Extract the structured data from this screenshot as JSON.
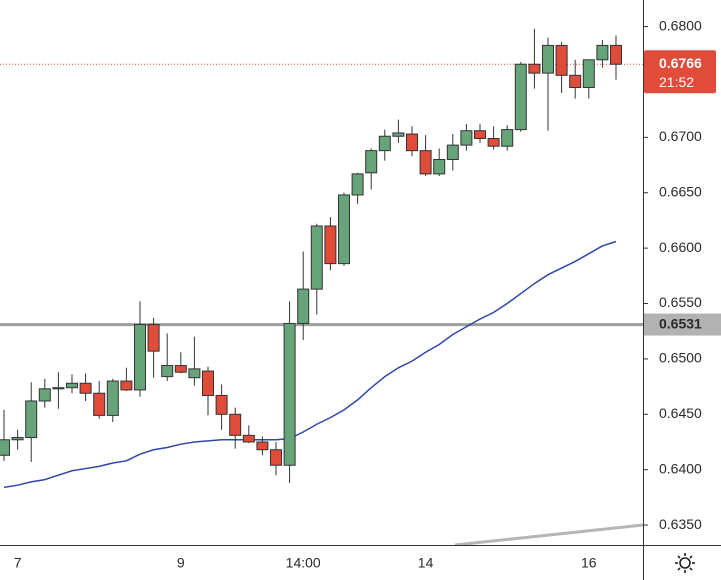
{
  "chart_data": {
    "type": "candlestick",
    "categories": [
      null,
      "7",
      null,
      null,
      null,
      null,
      null,
      null,
      null,
      null,
      null,
      null,
      null,
      "9",
      null,
      null,
      null,
      null,
      null,
      null,
      null,
      null,
      "14:00",
      null,
      null,
      null,
      null,
      null,
      null,
      null,
      null,
      "14",
      null,
      null,
      null,
      null,
      null,
      null,
      null,
      null,
      null,
      null,
      null,
      "16",
      null,
      null
    ],
    "candles": {
      "up_color": "#67a47a",
      "down_color": "#e04b3a",
      "open": [
        0.6413,
        0.6427,
        0.6429,
        0.6462,
        0.6473,
        0.6474,
        0.6478,
        0.6469,
        0.6449,
        0.648,
        0.6472,
        0.6531,
        0.6484,
        0.6494,
        0.6483,
        0.6489,
        0.6467,
        0.645,
        0.6431,
        0.6425,
        0.6418,
        0.6404,
        0.6532,
        0.6563,
        0.662,
        0.6586,
        0.6648,
        0.6668,
        0.6688,
        0.6701,
        0.6703,
        0.6688,
        0.6667,
        0.668,
        0.6693,
        0.6706,
        0.6699,
        0.6692,
        0.6707,
        0.6766,
        0.6758,
        0.6783,
        0.6756,
        0.6745,
        0.677,
        0.6783
      ],
      "high": [
        0.6454,
        0.6436,
        0.6479,
        0.6482,
        0.6488,
        0.6486,
        0.6487,
        0.648,
        0.6482,
        0.6492,
        0.6552,
        0.6537,
        0.6523,
        0.6506,
        0.652,
        0.6493,
        0.6477,
        0.6456,
        0.644,
        0.643,
        0.6425,
        0.6552,
        0.6597,
        0.6622,
        0.6628,
        0.665,
        0.6668,
        0.669,
        0.6707,
        0.6716,
        0.671,
        0.6702,
        0.669,
        0.6703,
        0.6712,
        0.6712,
        0.671,
        0.6711,
        0.6768,
        0.6798,
        0.679,
        0.6786,
        0.677,
        0.677,
        0.6788,
        0.6792
      ],
      "low": [
        0.6408,
        0.6418,
        0.6407,
        0.6456,
        0.6455,
        0.6469,
        0.6462,
        0.6446,
        0.6443,
        0.6471,
        0.6466,
        0.6483,
        0.648,
        0.6487,
        0.6476,
        0.6449,
        0.6436,
        0.6419,
        0.6424,
        0.6413,
        0.6395,
        0.6388,
        0.6517,
        0.654,
        0.658,
        0.6584,
        0.664,
        0.6653,
        0.6679,
        0.6695,
        0.6683,
        0.6665,
        0.6665,
        0.667,
        0.6688,
        0.6695,
        0.6689,
        0.6688,
        0.6705,
        0.6744,
        0.6706,
        0.674,
        0.6735,
        0.6735,
        0.6763,
        0.6752
      ],
      "close": [
        0.6427,
        0.6429,
        0.6462,
        0.6473,
        0.6474,
        0.6478,
        0.6469,
        0.6449,
        0.648,
        0.6472,
        0.6531,
        0.6507,
        0.6494,
        0.6488,
        0.6491,
        0.6467,
        0.645,
        0.6431,
        0.6425,
        0.6418,
        0.6404,
        0.6532,
        0.6563,
        0.662,
        0.6586,
        0.6648,
        0.6667,
        0.6688,
        0.6701,
        0.6704,
        0.6688,
        0.6667,
        0.668,
        0.6693,
        0.6706,
        0.6699,
        0.6692,
        0.6707,
        0.6766,
        0.6758,
        0.6783,
        0.6756,
        0.6745,
        0.677,
        0.6783,
        0.6766
      ]
    },
    "ma": {
      "color": "#2f47a8",
      "values": [
        0.6384,
        0.6386,
        0.6389,
        0.6391,
        0.6395,
        0.6399,
        0.6401,
        0.6403,
        0.6406,
        0.6408,
        0.6414,
        0.6418,
        0.642,
        0.6423,
        0.6425,
        0.6426,
        0.6427,
        0.6427,
        0.6427,
        0.6427,
        0.6427,
        0.6428,
        0.6434,
        0.6441,
        0.6447,
        0.6454,
        0.6463,
        0.6474,
        0.6484,
        0.6492,
        0.6498,
        0.6506,
        0.6513,
        0.6522,
        0.6529,
        0.6536,
        0.6542,
        0.655,
        0.6559,
        0.6568,
        0.6576,
        0.6582,
        0.6588,
        0.6595,
        0.6602,
        0.6606
      ]
    },
    "level": {
      "value": 0.6531,
      "color": "#9e9e9e"
    },
    "price_line": {
      "value": 0.6766,
      "countdown": "21:52",
      "color": "#e04b3a"
    },
    "ylim": [
      0.6332,
      0.6824
    ],
    "yticks": [
      {
        "value": 0.635,
        "label": "0.6350"
      },
      {
        "value": 0.64,
        "label": "0.6400"
      },
      {
        "value": 0.645,
        "label": "0.6450"
      },
      {
        "value": 0.65,
        "label": "0.6500"
      },
      {
        "value": 0.655,
        "label": "0.6550"
      },
      {
        "value": 0.66,
        "label": "0.6600"
      },
      {
        "value": 0.665,
        "label": "0.6650"
      },
      {
        "value": 0.67,
        "label": "0.6700"
      },
      {
        "value": 0.68,
        "label": "0.6800"
      }
    ]
  }
}
